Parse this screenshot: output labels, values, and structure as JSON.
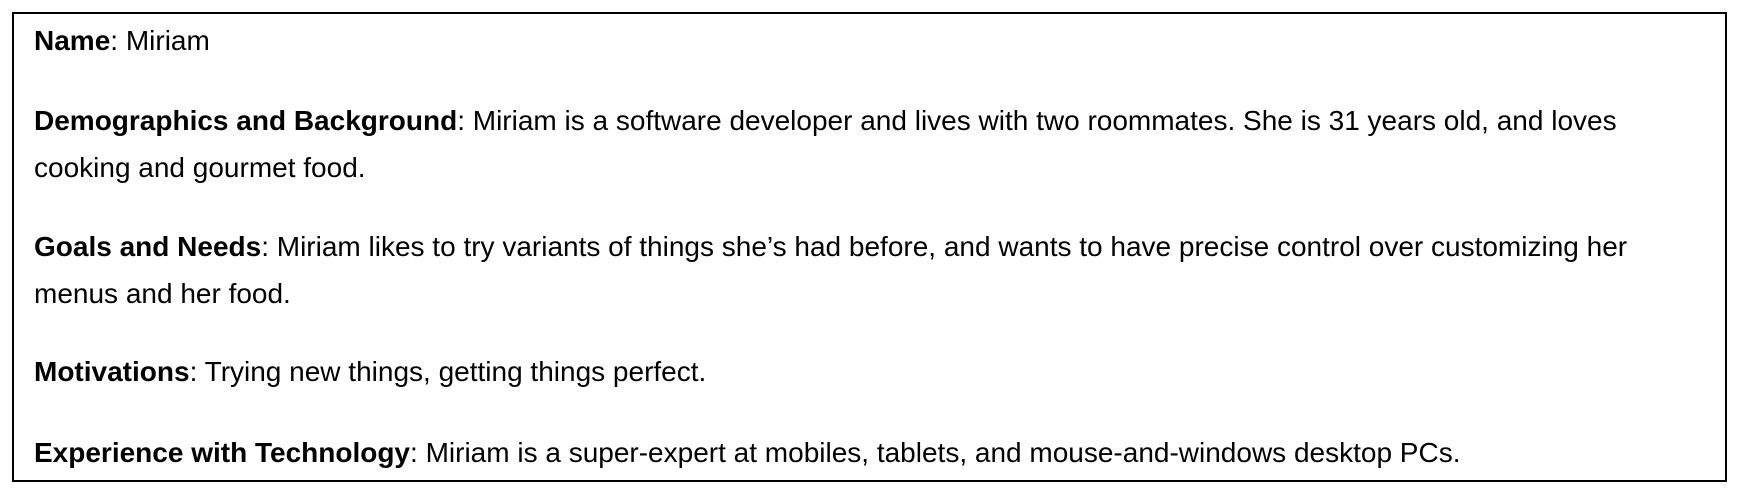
{
  "persona": {
    "fields": [
      {
        "label": "Name",
        "separator": ": ",
        "value": "Miriam"
      },
      {
        "label": "Demographics and Background",
        "separator": ": ",
        "value": "Miriam is a software developer and lives with two roommates. She is 31 years old, and loves cooking and gourmet food."
      },
      {
        "label": "Goals and Needs",
        "separator": ": ",
        "value": "Miriam likes to try variants of things she’s had before, and wants to have precise control over customizing her menus and her food."
      },
      {
        "label": "Motivations",
        "separator": ": ",
        "value": "Trying new things, getting things perfect."
      },
      {
        "label": "Experience with Technology",
        "separator": ": ",
        "value": "Miriam is a super-expert at mobiles, tablets, and mouse-and-windows desktop PCs."
      }
    ]
  }
}
